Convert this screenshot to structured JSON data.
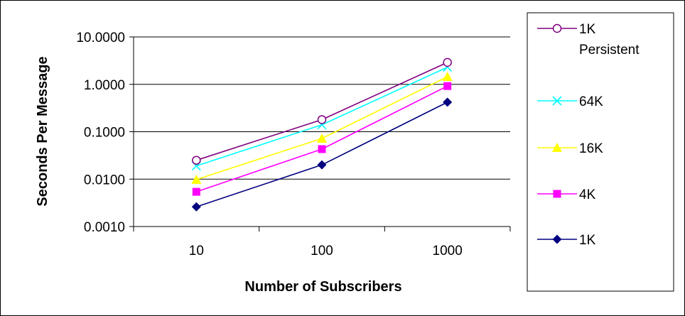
{
  "chart_data": {
    "type": "line",
    "title": "",
    "xlabel": "Number of Subscribers",
    "ylabel": "Seconds Per Message",
    "x_scale": "log",
    "y_scale": "log",
    "x": [
      10,
      100,
      1000
    ],
    "x_tick_labels": [
      "10",
      "100",
      "1000"
    ],
    "y_tick_labels": [
      "10.0000",
      "1.0000",
      "0.1000",
      "0.0100",
      "0.0010"
    ],
    "y_ticks": [
      10,
      1,
      0.1,
      0.01,
      0.001
    ],
    "ylim": [
      0.001,
      10
    ],
    "grid": "horizontal",
    "legend_placement": "right",
    "series": [
      {
        "name": "1K Persistent",
        "values": [
          0.025,
          0.18,
          2.9
        ],
        "color": "#800080",
        "marker": "circle-open"
      },
      {
        "name": "64K",
        "values": [
          0.019,
          0.14,
          2.3
        ],
        "color": "#00FFFF",
        "marker": "x"
      },
      {
        "name": "16K",
        "values": [
          0.0098,
          0.072,
          1.45
        ],
        "color": "#FFFF00",
        "marker": "triangle"
      },
      {
        "name": "4K",
        "values": [
          0.0054,
          0.043,
          0.92
        ],
        "color": "#FF00FF",
        "marker": "square"
      },
      {
        "name": "1K",
        "values": [
          0.0026,
          0.02,
          0.42
        ],
        "color": "#000080",
        "marker": "diamond"
      }
    ]
  }
}
